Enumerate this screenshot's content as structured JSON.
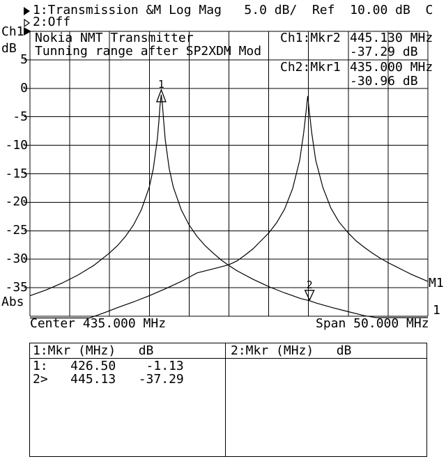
{
  "title_bar": {
    "line1": {
      "marker_icon": "filled-right-triangle",
      "text": "1:Transmission &M Log Mag   5.0 dB/  Ref  10.00 dB  C"
    },
    "line2": {
      "marker_icon": "open-right-triangle",
      "text": "2:Off"
    }
  },
  "y_axis": {
    "channel": "Ch1",
    "unit": "dB",
    "labels": [
      "5",
      "0",
      "-5",
      "-10",
      "-15",
      "-20",
      "-25",
      "-30",
      "-35"
    ],
    "bottom_label": "Abs",
    "ref_level_db": 10,
    "scale_per_div_db": 5
  },
  "x_axis": {
    "center_label": "Center 435.000 MHz",
    "span_label": "Span 50.000 MHz",
    "center_mhz": 435.0,
    "span_mhz": 50.0
  },
  "annotation": {
    "line1": "Nokia NMT Transmitter",
    "line2": "Tunning range after SP2XDM Mod"
  },
  "readouts": [
    {
      "label": "Ch1:Mkr2",
      "freq": "445.130 MHz",
      "level": "-37.29 dB"
    },
    {
      "label": "Ch2:Mkr1",
      "freq": "435.000 MHz",
      "level": "-30.96 dB"
    }
  ],
  "edge_labels": {
    "memory_trace": "M1",
    "data_trace": "1"
  },
  "marker_table": {
    "left_header": "1:Mkr (MHz)   dB",
    "right_header": "2:Mkr (MHz)   dB",
    "rows": [
      "1:   426.50    -1.13",
      "2>   445.13   -37.29"
    ]
  },
  "chart_data": {
    "type": "line",
    "title": "Nokia NMT Transmitter Tunning range after SP2XDM Mod",
    "xlabel": "Frequency (MHz), Center 435.000 MHz, Span 50.000 MHz",
    "ylabel": "Log Mag (dB), 5.0 dB/div, Ref 10.00 dB",
    "x_range_mhz": [
      410,
      460
    ],
    "y_range_db": [
      -40,
      10
    ],
    "x_divisions": 10,
    "y_divisions": 10,
    "grid": true,
    "line_color": "#000000",
    "series": [
      {
        "name": "Ch1 Transmission data (trace 1)",
        "points": [
          [
            410,
            -36.4
          ],
          [
            412,
            -35.4
          ],
          [
            414,
            -34.2
          ],
          [
            416,
            -32.8
          ],
          [
            418,
            -31.1
          ],
          [
            420,
            -28.9
          ],
          [
            421,
            -27.6
          ],
          [
            422,
            -26
          ],
          [
            423,
            -24
          ],
          [
            424,
            -21.3
          ],
          [
            425,
            -17.3
          ],
          [
            425.5,
            -14.1
          ],
          [
            426,
            -9
          ],
          [
            426.2,
            -5.8
          ],
          [
            426.35,
            -2.9
          ],
          [
            426.5,
            -1.13
          ],
          [
            426.65,
            -2.9
          ],
          [
            426.8,
            -5.8
          ],
          [
            427,
            -9
          ],
          [
            427.5,
            -14.1
          ],
          [
            428,
            -17.3
          ],
          [
            429,
            -21.3
          ],
          [
            430,
            -24
          ],
          [
            431,
            -26
          ],
          [
            432,
            -27.6
          ],
          [
            433,
            -28.9
          ],
          [
            434,
            -30.1
          ],
          [
            435,
            -31.1
          ],
          [
            436,
            -32
          ],
          [
            438,
            -33.5
          ],
          [
            440,
            -34.8
          ],
          [
            442,
            -35.9
          ],
          [
            444,
            -36.9
          ],
          [
            445.13,
            -37.29
          ],
          [
            446,
            -37.7
          ],
          [
            448,
            -38.5
          ],
          [
            450,
            -39.2
          ],
          [
            452,
            -39.9
          ],
          [
            453.5,
            -40.25
          ],
          [
            460,
            -40.25
          ]
        ]
      },
      {
        "name": "Ch1 Memory trace (M1)",
        "points": [
          [
            410,
            -40.3
          ],
          [
            417.5,
            -40.3
          ],
          [
            418.5,
            -39.8
          ],
          [
            419.5,
            -39.3
          ],
          [
            421,
            -38.5
          ],
          [
            423,
            -37.5
          ],
          [
            425,
            -36.4
          ],
          [
            427,
            -35.2
          ],
          [
            429,
            -33.9
          ],
          [
            431,
            -32.4
          ],
          [
            433,
            -31.7
          ],
          [
            435,
            -30.96
          ],
          [
            436,
            -30.3
          ],
          [
            437,
            -29.3
          ],
          [
            438,
            -28.2
          ],
          [
            439,
            -26.8
          ],
          [
            440,
            -25.4
          ],
          [
            441,
            -23.6
          ],
          [
            442,
            -21.2
          ],
          [
            443,
            -17.6
          ],
          [
            443.9,
            -12.6
          ],
          [
            444.4,
            -7.8
          ],
          [
            444.7,
            -4
          ],
          [
            444.9,
            -1.35
          ],
          [
            445.1,
            -4
          ],
          [
            445.4,
            -7.8
          ],
          [
            445.9,
            -12.6
          ],
          [
            446.8,
            -17.4
          ],
          [
            447.8,
            -21
          ],
          [
            448.8,
            -23.4
          ],
          [
            450,
            -25.4
          ],
          [
            451,
            -26.8
          ],
          [
            452,
            -27.9
          ],
          [
            453,
            -28.9
          ],
          [
            454,
            -29.8
          ],
          [
            455,
            -30.6
          ],
          [
            456,
            -31.3
          ],
          [
            457,
            -32
          ],
          [
            458,
            -32.7
          ],
          [
            459,
            -33.3
          ],
          [
            460,
            -33.9
          ]
        ]
      }
    ],
    "markers": [
      {
        "number": "1",
        "trace": "Ch1 data",
        "mhz": 426.5,
        "db": -1.13,
        "symbol": "triangle-up"
      },
      {
        "number": "2",
        "trace": "Ch1 data",
        "mhz": 445.13,
        "db": -37.29,
        "symbol": "triangle-down"
      }
    ]
  }
}
